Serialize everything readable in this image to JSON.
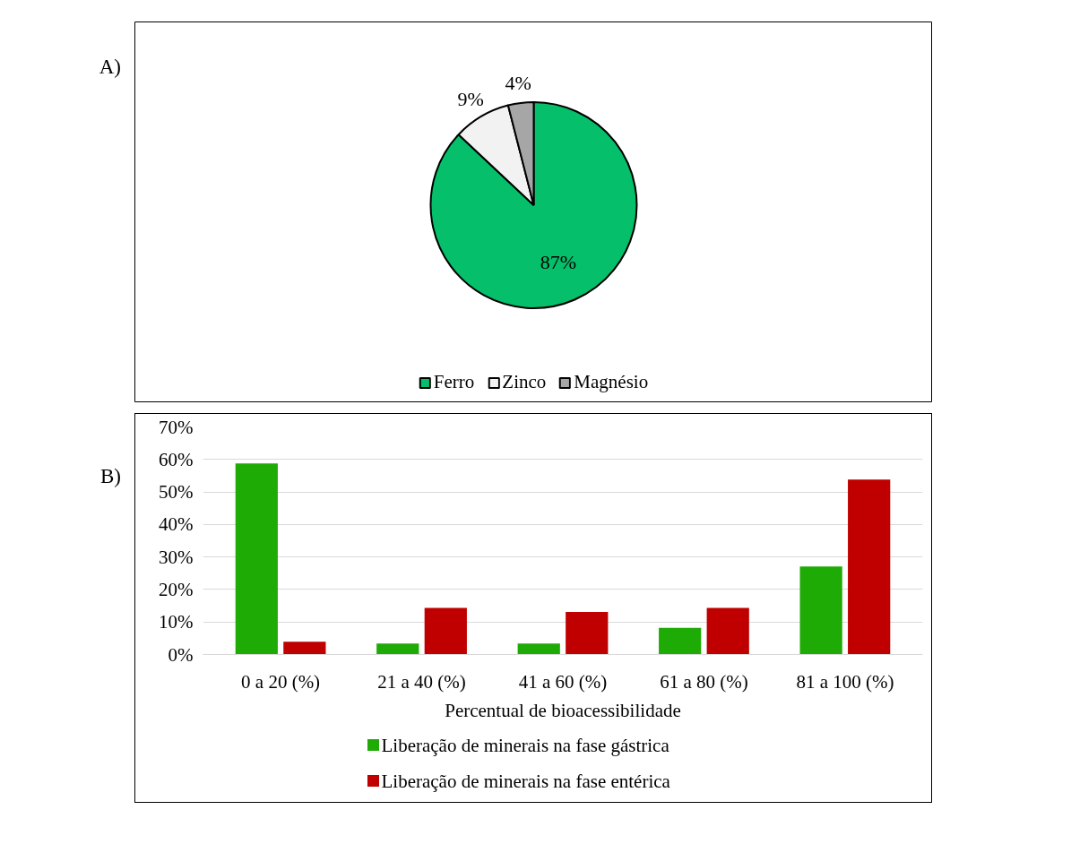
{
  "chart_data": [
    {
      "type": "pie",
      "annotations": [
        "A)"
      ],
      "categories": [
        "Ferro",
        "Zinco",
        "Magnésio"
      ],
      "values": [
        87,
        9,
        4
      ],
      "colors": [
        "#05bf6a",
        "#f2f2f2",
        "#a6a6a6"
      ],
      "value_labels": [
        "87%",
        "9%",
        "4%"
      ],
      "legend": "bottom"
    },
    {
      "type": "bar",
      "annotations": [
        "B)"
      ],
      "categories": [
        "0 a 20 (%)",
        "21 a 40 (%)",
        "41 a 60 (%)",
        "61 a 80 (%)",
        "81 a 100 (%)"
      ],
      "xlabel": "Percentual de bioacessibilidade",
      "series": [
        {
          "name": "Liberação de minerais na fase gástrica",
          "color": "#1fab06",
          "values": [
            58.8,
            3.4,
            3.4,
            8.2,
            27.1
          ]
        },
        {
          "name": "Liberação de minerais na fase entérica",
          "color": "#c00000",
          "values": [
            3.9,
            14.3,
            13.1,
            14.3,
            53.8
          ]
        }
      ],
      "ylim": [
        0,
        70
      ],
      "yticks": [
        {
          "value": 0,
          "label": "0%"
        },
        {
          "value": 10,
          "label": "10%"
        },
        {
          "value": 20,
          "label": "20%"
        },
        {
          "value": 30,
          "label": "30%"
        },
        {
          "value": 40,
          "label": "40%"
        },
        {
          "value": 50,
          "label": "50%"
        },
        {
          "value": 60,
          "label": "60%"
        },
        {
          "value": 70,
          "label": "70%"
        }
      ],
      "grid": "y",
      "legend": "bottom"
    }
  ]
}
